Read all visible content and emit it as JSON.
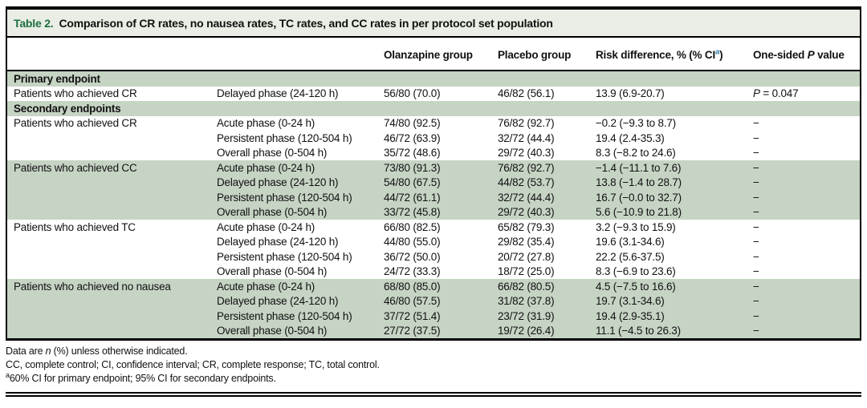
{
  "title": {
    "label": "Table 2.",
    "text": "Comparison of CR rates, no nausea rates, TC rates, and CC rates in per protocol set population"
  },
  "colors": {
    "caption_label_green": "#1d6f3e",
    "caption_background": "#e9ede5",
    "row_band_green": "#c6d4c4",
    "superscript_teal": "#2e7ca8"
  },
  "header": {
    "endpoint": "",
    "phase": "",
    "olanzapine": "Olanzapine group",
    "placebo": "Placebo group",
    "risk_difference": {
      "pre": "Risk difference, % (% CI",
      "sup": "a",
      "post": ")"
    },
    "p_value": {
      "pre": "One-sided ",
      "italic": "P",
      "post": " value"
    }
  },
  "rows": [
    {
      "type": "section",
      "label": "Primary endpoint",
      "shaded": true
    },
    {
      "type": "data",
      "endpoint": "Patients who achieved CR",
      "phase": "Delayed phase (24-120 h)",
      "olanzapine": "56/80 (70.0)",
      "placebo": "46/82 (56.1)",
      "risk_difference": "13.9 (6.9-20.7)",
      "p_value": "P = 0.047",
      "shaded": false
    },
    {
      "type": "section",
      "label": "Secondary endpoints",
      "shaded": true
    },
    {
      "type": "data",
      "endpoint": "Patients who achieved CR",
      "phase": "Acute phase (0-24 h)",
      "olanzapine": "74/80 (92.5)",
      "placebo": "76/82 (92.7)",
      "risk_difference": "−0.2 (−9.3 to 8.7)",
      "p_value": "−",
      "shaded": false
    },
    {
      "type": "data",
      "endpoint": "",
      "phase": "Persistent phase (120-504 h)",
      "olanzapine": "46/72 (63.9)",
      "placebo": "32/72 (44.4)",
      "risk_difference": "19.4 (2.4-35.3)",
      "p_value": "−",
      "shaded": false
    },
    {
      "type": "data",
      "endpoint": "",
      "phase": "Overall phase (0-504 h)",
      "olanzapine": "35/72 (48.6)",
      "placebo": "29/72 (40.3)",
      "risk_difference": "8.3 (−8.2 to 24.6)",
      "p_value": "−",
      "shaded": false
    },
    {
      "type": "data",
      "endpoint": "Patients who achieved CC",
      "phase": "Acute phase (0-24 h)",
      "olanzapine": "73/80 (91.3)",
      "placebo": "76/82 (92.7)",
      "risk_difference": "−1.4 (−11.1 to 7.6)",
      "p_value": "−",
      "shaded": true
    },
    {
      "type": "data",
      "endpoint": "",
      "phase": "Delayed phase (24-120 h)",
      "olanzapine": "54/80 (67.5)",
      "placebo": "44/82 (53.7)",
      "risk_difference": "13.8 (−1.4 to 28.7)",
      "p_value": "−",
      "shaded": true
    },
    {
      "type": "data",
      "endpoint": "",
      "phase": "Persistent phase (120-504 h)",
      "olanzapine": "44/72 (61.1)",
      "placebo": "32/72 (44.4)",
      "risk_difference": "16.7 (−0.0 to 32.7)",
      "p_value": "−",
      "shaded": true
    },
    {
      "type": "data",
      "endpoint": "",
      "phase": "Overall phase (0-504 h)",
      "olanzapine": "33/72 (45.8)",
      "placebo": "29/72 (40.3)",
      "risk_difference": "5.6 (−10.9 to 21.8)",
      "p_value": "−",
      "shaded": true
    },
    {
      "type": "data",
      "endpoint": "Patients who achieved TC",
      "phase": "Acute phase (0-24 h)",
      "olanzapine": "66/80 (82.5)",
      "placebo": "65/82 (79.3)",
      "risk_difference": "3.2 (−9.3 to 15.9)",
      "p_value": "−",
      "shaded": false
    },
    {
      "type": "data",
      "endpoint": "",
      "phase": "Delayed phase (24-120 h)",
      "olanzapine": "44/80 (55.0)",
      "placebo": "29/82 (35.4)",
      "risk_difference": "19.6 (3.1-34.6)",
      "p_value": "−",
      "shaded": false
    },
    {
      "type": "data",
      "endpoint": "",
      "phase": "Persistent phase (120-504 h)",
      "olanzapine": "36/72 (50.0)",
      "placebo": "20/72 (27.8)",
      "risk_difference": "22.2 (5.6-37.5)",
      "p_value": "−",
      "shaded": false
    },
    {
      "type": "data",
      "endpoint": "",
      "phase": "Overall phase (0-504 h)",
      "olanzapine": "24/72 (33.3)",
      "placebo": "18/72 (25.0)",
      "risk_difference": "8.3 (−6.9 to 23.6)",
      "p_value": "−",
      "shaded": false
    },
    {
      "type": "data",
      "endpoint": "Patients who achieved no nausea",
      "phase": "Acute phase (0-24 h)",
      "olanzapine": "68/80 (85.0)",
      "placebo": "66/82 (80.5)",
      "risk_difference": "4.5 (−7.5 to 16.6)",
      "p_value": "−",
      "shaded": true
    },
    {
      "type": "data",
      "endpoint": "",
      "phase": "Delayed phase (24-120 h)",
      "olanzapine": "46/80 (57.5)",
      "placebo": "31/82 (37.8)",
      "risk_difference": "19.7 (3.1-34.6)",
      "p_value": "−",
      "shaded": true
    },
    {
      "type": "data",
      "endpoint": "",
      "phase": "Persistent phase (120-504 h)",
      "olanzapine": "37/72 (51.4)",
      "placebo": "23/72 (31.9)",
      "risk_difference": "19.4 (2.9-35.1)",
      "p_value": "−",
      "shaded": true
    },
    {
      "type": "data",
      "endpoint": "",
      "phase": "Overall phase (0-504 h)",
      "olanzapine": "27/72 (37.5)",
      "placebo": "19/72 (26.4)",
      "risk_difference": "11.1 (−4.5 to 26.3)",
      "p_value": "−",
      "shaded": true
    }
  ],
  "footnotes": {
    "line1": {
      "pre": "Data are ",
      "italic": "n",
      "post": " (%) unless otherwise indicated."
    },
    "line2": "CC, complete control; CI, confidence interval; CR, complete response; TC, total control.",
    "line3": {
      "sup": "a",
      "text": "60% CI for primary endpoint; 95% CI for secondary endpoints."
    }
  }
}
